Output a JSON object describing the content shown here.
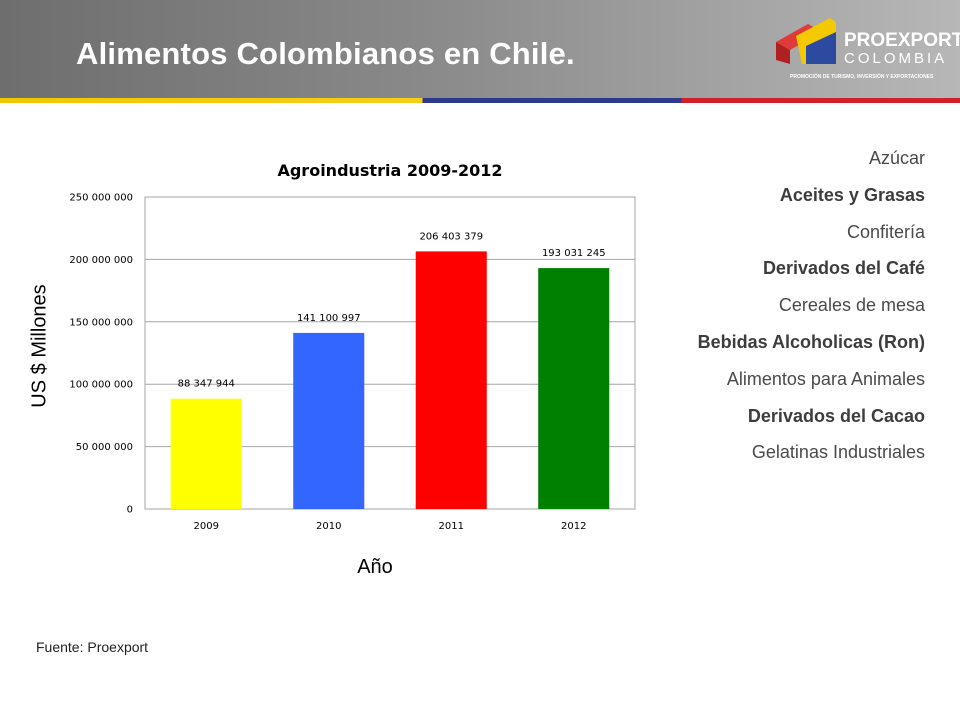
{
  "slide": {
    "title": "Alimentos Colombianos en Chile.",
    "source": "Fuente: Proexport"
  },
  "logo": {
    "name": "PROEXPORT",
    "sub": "COLOMBIA",
    "tagline": "PROMOCIÓN DE TURISMO, INVERSIÓN Y EXPORTACIONES"
  },
  "products": [
    {
      "label": "Azúcar",
      "bold": false
    },
    {
      "label": "Aceites y Grasas",
      "bold": true
    },
    {
      "label": "Confitería",
      "bold": false
    },
    {
      "label": "Derivados del Café",
      "bold": true
    },
    {
      "label": "Cereales de mesa",
      "bold": false
    },
    {
      "label": "Bebidas Alcoholicas (Ron)",
      "bold": true
    },
    {
      "label": "Alimentos para Animales",
      "bold": false
    },
    {
      "label": "Derivados del Cacao",
      "bold": true
    },
    {
      "label": "Gelatinas Industriales",
      "bold": false
    }
  ],
  "chart_data": {
    "type": "bar",
    "title": "Agroindustria 2009-2012",
    "xlabel": "Año",
    "ylabel": "US $ Millones",
    "categories": [
      "2009",
      "2010",
      "2011",
      "2012"
    ],
    "values": [
      88347944,
      141100997,
      206403379,
      193031245
    ],
    "data_labels": [
      "88 347 944",
      "141 100 997",
      "206 403 379",
      "193 031 245"
    ],
    "colors": [
      "#ffff00",
      "#3366ff",
      "#ff0000",
      "#008000"
    ],
    "ylim": [
      0,
      250000000
    ],
    "yticks": [
      0,
      50000000,
      100000000,
      150000000,
      200000000,
      250000000
    ],
    "ytick_labels": [
      "0",
      "50 000 000",
      "100 000 000",
      "150 000 000",
      "200 000 000",
      "250 000 000"
    ],
    "grid": true,
    "legend": "none"
  }
}
